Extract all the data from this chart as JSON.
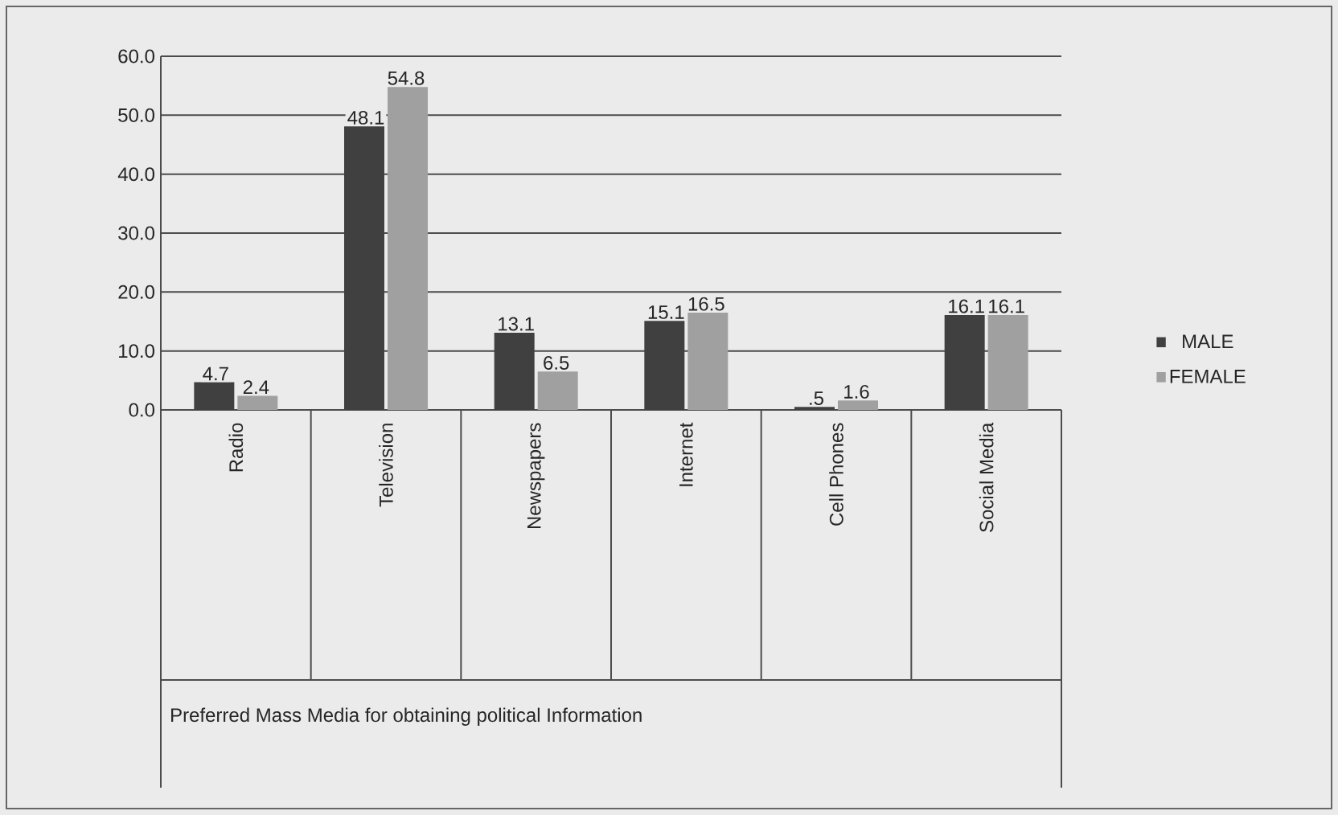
{
  "chart_data": {
    "type": "bar",
    "annotations": [
      "Preferred Mass Media for obtaining political Information"
    ],
    "categories": [
      "Radio",
      "Television",
      "Newspapers",
      "Internet",
      "Cell Phones",
      "Social Media"
    ],
    "series": [
      {
        "name": "MALE",
        "color": "#404040",
        "values": [
          4.7,
          48.1,
          13.1,
          15.1,
          0.5,
          16.1
        ],
        "value_labels": [
          "4.7",
          "48.1",
          "13.1",
          "15.1",
          ".5",
          "16.1"
        ]
      },
      {
        "name": "FEMALE",
        "color": "#a0a0a0",
        "values": [
          2.4,
          54.8,
          6.5,
          16.5,
          1.6,
          16.1
        ],
        "value_labels": [
          "2.4",
          "54.8",
          "6.5",
          "16.5",
          "1.6",
          "16.1"
        ]
      }
    ],
    "ylim": [
      0,
      60
    ],
    "yticks": [
      {
        "value": 0,
        "label": "0.0"
      },
      {
        "value": 10,
        "label": "10.0"
      },
      {
        "value": 20,
        "label": "20.0"
      },
      {
        "value": 30,
        "label": "30.0"
      },
      {
        "value": 40,
        "label": "40.0"
      },
      {
        "value": 50,
        "label": "50.0"
      },
      {
        "value": 60,
        "label": "60.0"
      }
    ],
    "grid": "y",
    "legend": "right"
  }
}
